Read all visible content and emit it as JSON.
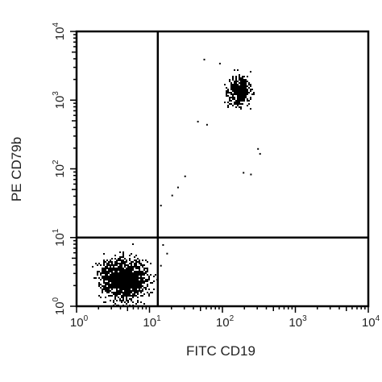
{
  "chart_data": {
    "type": "scatter",
    "xlabel": "FITC CD19",
    "ylabel": "PE CD79b",
    "x_scale": "log",
    "y_scale": "log",
    "xlim": [
      1,
      10000
    ],
    "ylim": [
      1,
      10000
    ],
    "x_ticks": [
      {
        "base": "10",
        "exp": "0"
      },
      {
        "base": "10",
        "exp": "1"
      },
      {
        "base": "10",
        "exp": "2"
      },
      {
        "base": "10",
        "exp": "3"
      },
      {
        "base": "10",
        "exp": "4"
      }
    ],
    "y_ticks": [
      {
        "base": "10",
        "exp": "0"
      },
      {
        "base": "10",
        "exp": "1"
      },
      {
        "base": "10",
        "exp": "2"
      },
      {
        "base": "10",
        "exp": "3"
      },
      {
        "base": "10",
        "exp": "4"
      }
    ],
    "quadrant_gate": {
      "x": 13,
      "y": 10
    },
    "grid": false,
    "populations": [
      {
        "x_center": 4.5,
        "y_center": 2.5,
        "x_spread_decades": 0.28,
        "y_spread_decades": 0.27,
        "approx_events": 1400
      },
      {
        "x_center": 170,
        "y_center": 1400,
        "x_spread_decades": 0.14,
        "y_spread_decades": 0.2,
        "approx_events": 420
      }
    ],
    "scattered_points": [
      {
        "x": 45,
        "y": 500
      },
      {
        "x": 60,
        "y": 450
      },
      {
        "x": 30,
        "y": 80
      },
      {
        "x": 24,
        "y": 55
      },
      {
        "x": 20,
        "y": 42
      },
      {
        "x": 14,
        "y": 30
      },
      {
        "x": 190,
        "y": 90
      },
      {
        "x": 240,
        "y": 85
      },
      {
        "x": 300,
        "y": 200
      },
      {
        "x": 320,
        "y": 170
      },
      {
        "x": 15,
        "y": 8
      },
      {
        "x": 17,
        "y": 6
      },
      {
        "x": 14,
        "y": 4
      },
      {
        "x": 55,
        "y": 4000
      },
      {
        "x": 90,
        "y": 3500
      }
    ]
  }
}
